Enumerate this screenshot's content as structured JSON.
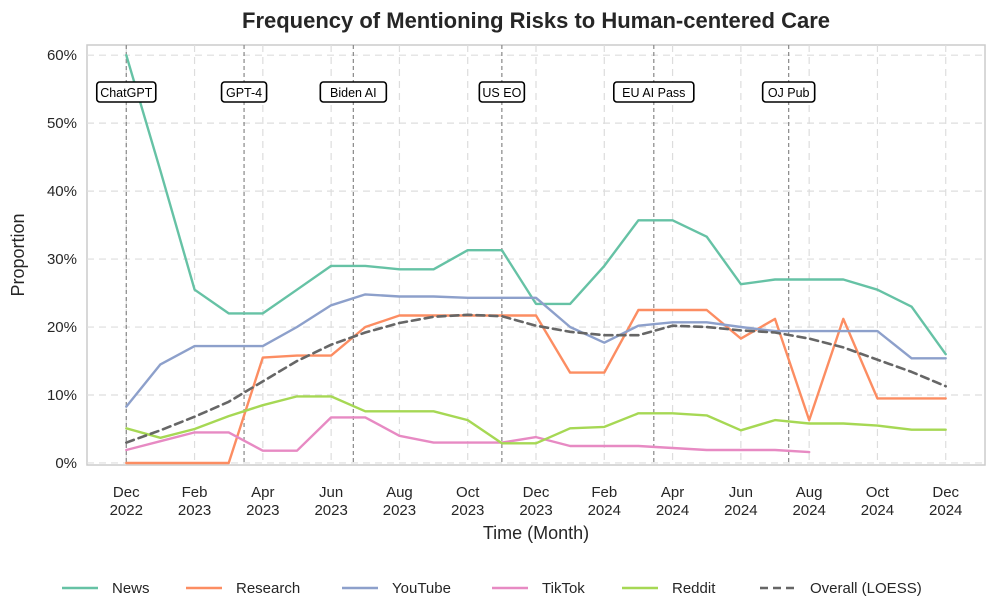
{
  "chart_data": {
    "type": "line",
    "title": "Frequency of Mentioning Risks to Human-centered Care",
    "xlabel": "Time (Month)",
    "ylabel": "Proportion",
    "ylim": [
      -0.003,
      0.615
    ],
    "yticks": [
      "0%",
      "10%",
      "20%",
      "30%",
      "40%",
      "50%",
      "60%"
    ],
    "xticks": [
      {
        "idx": 0,
        "month": "Dec",
        "year": "2022"
      },
      {
        "idx": 2,
        "month": "Feb",
        "year": "2023"
      },
      {
        "idx": 4,
        "month": "Apr",
        "year": "2023"
      },
      {
        "idx": 6,
        "month": "Jun",
        "year": "2023"
      },
      {
        "idx": 8,
        "month": "Aug",
        "year": "2023"
      },
      {
        "idx": 10,
        "month": "Oct",
        "year": "2023"
      },
      {
        "idx": 12,
        "month": "Dec",
        "year": "2023"
      },
      {
        "idx": 14,
        "month": "Feb",
        "year": "2024"
      },
      {
        "idx": 16,
        "month": "Apr",
        "year": "2024"
      },
      {
        "idx": 18,
        "month": "Jun",
        "year": "2024"
      },
      {
        "idx": 20,
        "month": "Aug",
        "year": "2024"
      },
      {
        "idx": 22,
        "month": "Oct",
        "year": "2024"
      },
      {
        "idx": 24,
        "month": "Dec",
        "year": "2024"
      }
    ],
    "x_range": [
      -1.15,
      25.15
    ],
    "grid": true,
    "events": [
      {
        "label": "ChatGPT",
        "x": 0
      },
      {
        "label": "GPT-4",
        "x": 3.45
      },
      {
        "label": "Biden AI",
        "x": 6.65
      },
      {
        "label": "US EO",
        "x": 11
      },
      {
        "label": "EU AI Pass",
        "x": 15.45
      },
      {
        "label": "OJ Pub",
        "x": 19.4
      }
    ],
    "series": [
      {
        "name": "News",
        "color": "#66c2a5",
        "dashed": false,
        "x": [
          0,
          1,
          2,
          3,
          4,
          5,
          6,
          7,
          8,
          9,
          10,
          11,
          12,
          13,
          14,
          15,
          16,
          17,
          18,
          19,
          20,
          21,
          22,
          23,
          24
        ],
        "values": [
          0.6,
          0.43,
          0.255,
          0.22,
          0.22,
          0.255,
          0.29,
          0.29,
          0.285,
          0.285,
          0.313,
          0.313,
          0.234,
          0.234,
          0.29,
          0.357,
          0.357,
          0.333,
          0.263,
          0.27,
          0.27,
          0.27,
          0.255,
          0.23,
          0.16
        ]
      },
      {
        "name": "Research",
        "color": "#fc8d62",
        "dashed": false,
        "x": [
          0,
          1,
          2,
          3,
          4,
          5,
          6,
          7,
          8,
          9,
          10,
          11,
          12,
          13,
          14,
          15,
          16,
          17,
          18,
          19,
          20,
          21,
          22,
          23,
          24
        ],
        "values": [
          0.0,
          0.0,
          0.0,
          0.0,
          0.155,
          0.158,
          0.158,
          0.2,
          0.217,
          0.217,
          0.217,
          0.217,
          0.217,
          0.133,
          0.133,
          0.225,
          0.225,
          0.225,
          0.183,
          0.212,
          0.063,
          0.212,
          0.095,
          0.095,
          0.095
        ]
      },
      {
        "name": "YouTube",
        "color": "#8da0cb",
        "dashed": false,
        "x": [
          0,
          1,
          2,
          3,
          4,
          5,
          6,
          7,
          8,
          9,
          10,
          11,
          12,
          13,
          14,
          15,
          16,
          17,
          18,
          19,
          20,
          21,
          22,
          23,
          24
        ],
        "values": [
          0.083,
          0.145,
          0.172,
          0.172,
          0.172,
          0.2,
          0.232,
          0.248,
          0.245,
          0.245,
          0.243,
          0.243,
          0.243,
          0.2,
          0.177,
          0.202,
          0.207,
          0.207,
          0.2,
          0.194,
          0.194,
          0.194,
          0.194,
          0.154,
          0.154
        ]
      },
      {
        "name": "TikTok",
        "color": "#e78ac3",
        "dashed": false,
        "x": [
          0,
          1,
          2,
          3,
          4,
          5,
          6,
          7,
          8,
          9,
          10,
          11,
          12,
          13,
          14,
          15,
          16,
          17,
          18,
          19,
          20
        ],
        "values": [
          0.019,
          0.032,
          0.045,
          0.045,
          0.018,
          0.018,
          0.067,
          0.067,
          0.04,
          0.03,
          0.03,
          0.03,
          0.038,
          0.025,
          0.025,
          0.025,
          0.022,
          0.019,
          0.019,
          0.019,
          0.016
        ]
      },
      {
        "name": "Reddit",
        "color": "#a6d854",
        "dashed": false,
        "x": [
          0,
          1,
          2,
          3,
          4,
          5,
          6,
          7,
          8,
          9,
          10,
          11,
          12,
          13,
          14,
          15,
          16,
          17,
          18,
          19,
          20,
          21,
          22,
          23,
          24
        ],
        "values": [
          0.051,
          0.037,
          0.05,
          0.069,
          0.085,
          0.098,
          0.098,
          0.076,
          0.076,
          0.076,
          0.063,
          0.029,
          0.029,
          0.051,
          0.053,
          0.073,
          0.073,
          0.07,
          0.048,
          0.063,
          0.058,
          0.058,
          0.055,
          0.049,
          0.049
        ]
      },
      {
        "name": "Overall (LOESS)",
        "color": "#666666",
        "dashed": true,
        "x": [
          0,
          1,
          2,
          3,
          4,
          5,
          6,
          7,
          8,
          9,
          10,
          11,
          12,
          13,
          14,
          15,
          16,
          17,
          18,
          19,
          20,
          21,
          22,
          23,
          24
        ],
        "values": [
          0.03,
          0.048,
          0.068,
          0.09,
          0.12,
          0.15,
          0.174,
          0.192,
          0.206,
          0.215,
          0.218,
          0.216,
          0.202,
          0.193,
          0.188,
          0.188,
          0.202,
          0.2,
          0.195,
          0.192,
          0.183,
          0.17,
          0.152,
          0.134,
          0.113
        ]
      }
    ]
  }
}
